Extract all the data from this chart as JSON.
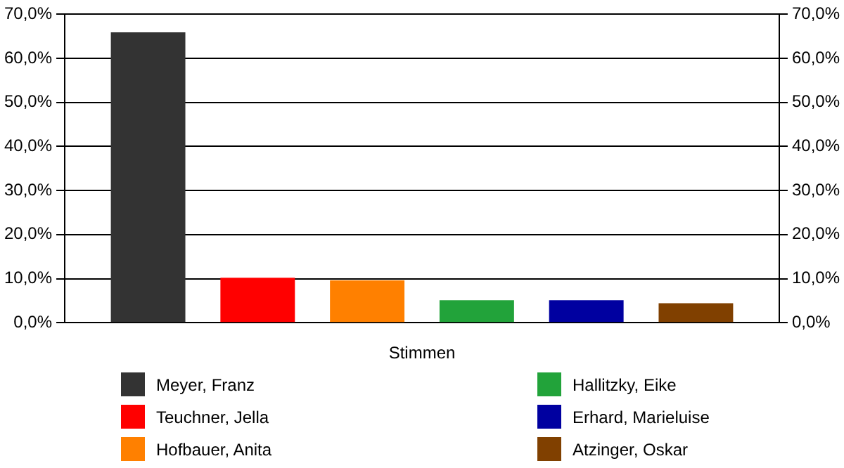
{
  "chart_data": {
    "type": "bar",
    "categories": [
      "Stimmen"
    ],
    "series": [
      {
        "name": "Meyer, Franz",
        "color": "#333333",
        "values": [
          65.9
        ]
      },
      {
        "name": "Teuchner, Jella",
        "color": "#ff0000",
        "values": [
          10.2
        ]
      },
      {
        "name": "Hofbauer, Anita",
        "color": "#ff8000",
        "values": [
          9.6
        ]
      },
      {
        "name": "Hallitzky, Eike",
        "color": "#22a33a",
        "values": [
          5.1
        ]
      },
      {
        "name": "Erhard, Marieluise",
        "color": "#0000a0",
        "values": [
          5.1
        ]
      },
      {
        "name": "Atzinger, Oskar",
        "color": "#804000",
        "values": [
          4.4
        ]
      }
    ],
    "ylim": [
      0,
      70
    ],
    "yticks": [
      {
        "value": 0,
        "label": "0,0%"
      },
      {
        "value": 10,
        "label": "10,0%"
      },
      {
        "value": 20,
        "label": "20,0%"
      },
      {
        "value": 30,
        "label": "30,0%"
      },
      {
        "value": 40,
        "label": "40,0%"
      },
      {
        "value": 50,
        "label": "50,0%"
      },
      {
        "value": 60,
        "label": "60,0%"
      },
      {
        "value": 70,
        "label": "70,0%"
      }
    ],
    "grid": "y",
    "legend": "bottom"
  }
}
